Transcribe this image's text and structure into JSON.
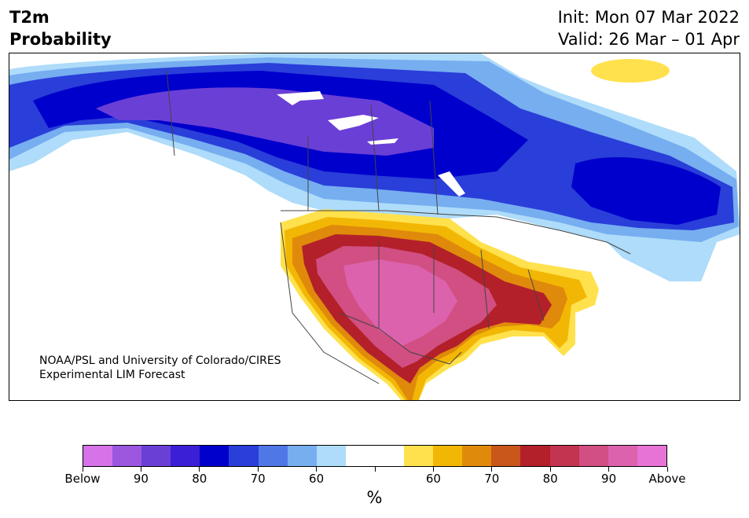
{
  "header": {
    "title_line1": "T2m",
    "title_line2": "Probability",
    "init": "Init: Mon 07 Mar 2022",
    "valid": "Valid: 26 Mar – 01 Apr"
  },
  "map": {
    "credit_line1": "NOAA/PSL and University of Colorado/CIRES",
    "credit_line2": "Experimental LIM Forecast"
  },
  "colorbar": {
    "colors": [
      "#d673e8",
      "#9b57e0",
      "#6a3fd6",
      "#3b1fd6",
      "#0000cc",
      "#2a3ed9",
      "#4f78e6",
      "#76aef0",
      "#aedcfa",
      "#ffffff",
      "#ffffff",
      "#ffe14d",
      "#f2b705",
      "#e08a0b",
      "#c9561a",
      "#b3202a",
      "#c2344f",
      "#d14f82",
      "#dd62ad",
      "#e873d6"
    ],
    "labels": [
      "Below",
      "90",
      "80",
      "70",
      "60",
      "",
      "60",
      "70",
      "80",
      "90",
      "Above"
    ],
    "unit": "%"
  }
}
